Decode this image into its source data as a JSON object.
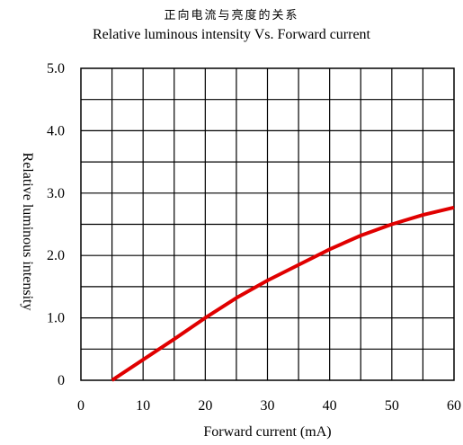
{
  "chart_data": {
    "type": "line",
    "title": "正向电流与亮度的关系",
    "subtitle": "Relative luminous intensity Vs. Forward current",
    "xlabel": "Forward current (mA)",
    "ylabel": "Relative luminous intensity",
    "xlim": [
      0,
      60
    ],
    "ylim": [
      0,
      5
    ],
    "x_ticks": [
      "0",
      "10",
      "20",
      "30",
      "40",
      "50",
      "60"
    ],
    "y_ticks": [
      "0",
      "1.0",
      "2.0",
      "3.0",
      "4.0",
      "5.0"
    ],
    "grid": true,
    "series": [
      {
        "color": "#e00000",
        "x": [
          5,
          10,
          15,
          20,
          25,
          30,
          35,
          40,
          45,
          50,
          55,
          60
        ],
        "y": [
          0,
          0.33,
          0.66,
          1.0,
          1.32,
          1.6,
          1.85,
          2.1,
          2.32,
          2.5,
          2.65,
          2.77
        ]
      }
    ]
  }
}
